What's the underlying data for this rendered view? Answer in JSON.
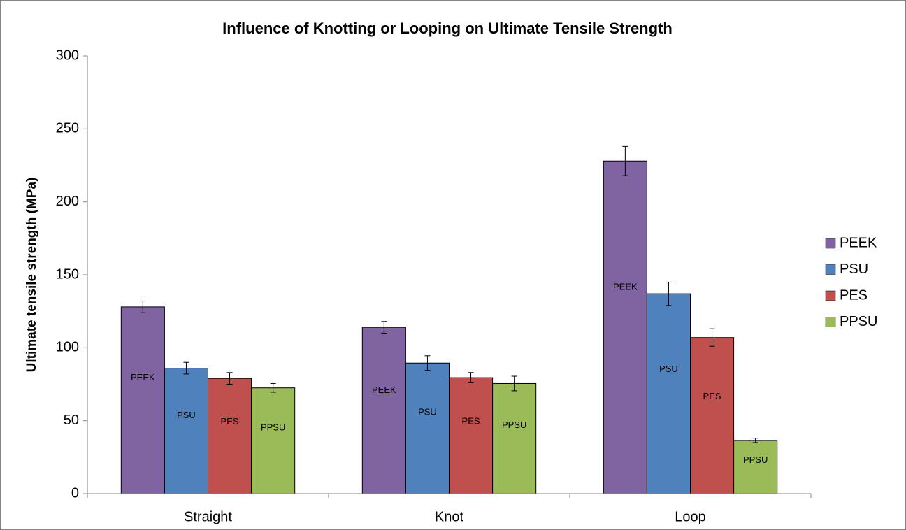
{
  "chart_data": {
    "type": "bar",
    "title": "Influence of Knotting or Looping on Ultimate Tensile Strength",
    "y_label": "Ultimate tensile strength (MPa)",
    "categories": [
      "Straight",
      "Knot",
      "Loop"
    ],
    "series": [
      {
        "name": "PEEK",
        "color": "#8064a2",
        "values": [
          128,
          114,
          228
        ],
        "errors": [
          4,
          4,
          10
        ]
      },
      {
        "name": "PSU",
        "color": "#4f81bd",
        "values": [
          86,
          89.5,
          137
        ],
        "errors": [
          4,
          5,
          8
        ]
      },
      {
        "name": "PES",
        "color": "#c0504d",
        "values": [
          79,
          79.5,
          107
        ],
        "errors": [
          4,
          3.5,
          6
        ]
      },
      {
        "name": "PPSU",
        "color": "#9bbb59",
        "values": [
          72.5,
          75.5,
          36.5
        ],
        "errors": [
          3,
          5,
          1.5
        ]
      }
    ],
    "ylim": [
      0,
      300
    ],
    "yticks": [
      0,
      50,
      100,
      150,
      200,
      250,
      300
    ],
    "legend": "right"
  }
}
